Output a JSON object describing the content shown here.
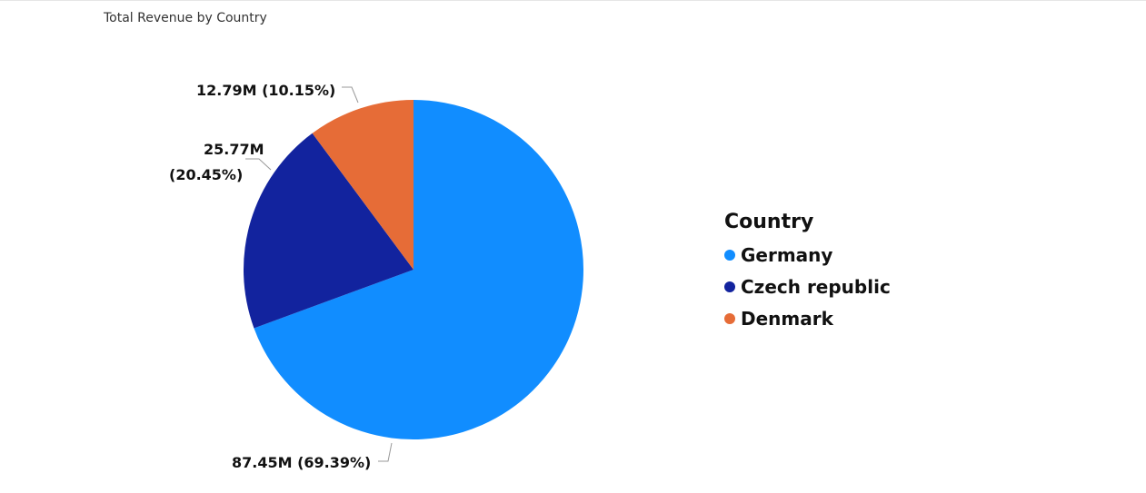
{
  "chart_data": {
    "type": "pie",
    "title": "Total Revenue by Country",
    "legend_title": "Country",
    "legend_position": "right",
    "slices": [
      {
        "name": "Germany",
        "value": 87.45,
        "label": "87.45M (69.39%)",
        "color": "#118DFF"
      },
      {
        "name": "Czech republic",
        "value": 25.77,
        "label_line1": "25.77M",
        "label_line2": "(20.45%)",
        "color": "#12239E"
      },
      {
        "name": "Denmark",
        "value": 12.79,
        "label": "12.79M (10.15%)",
        "color": "#E66C37"
      }
    ]
  }
}
